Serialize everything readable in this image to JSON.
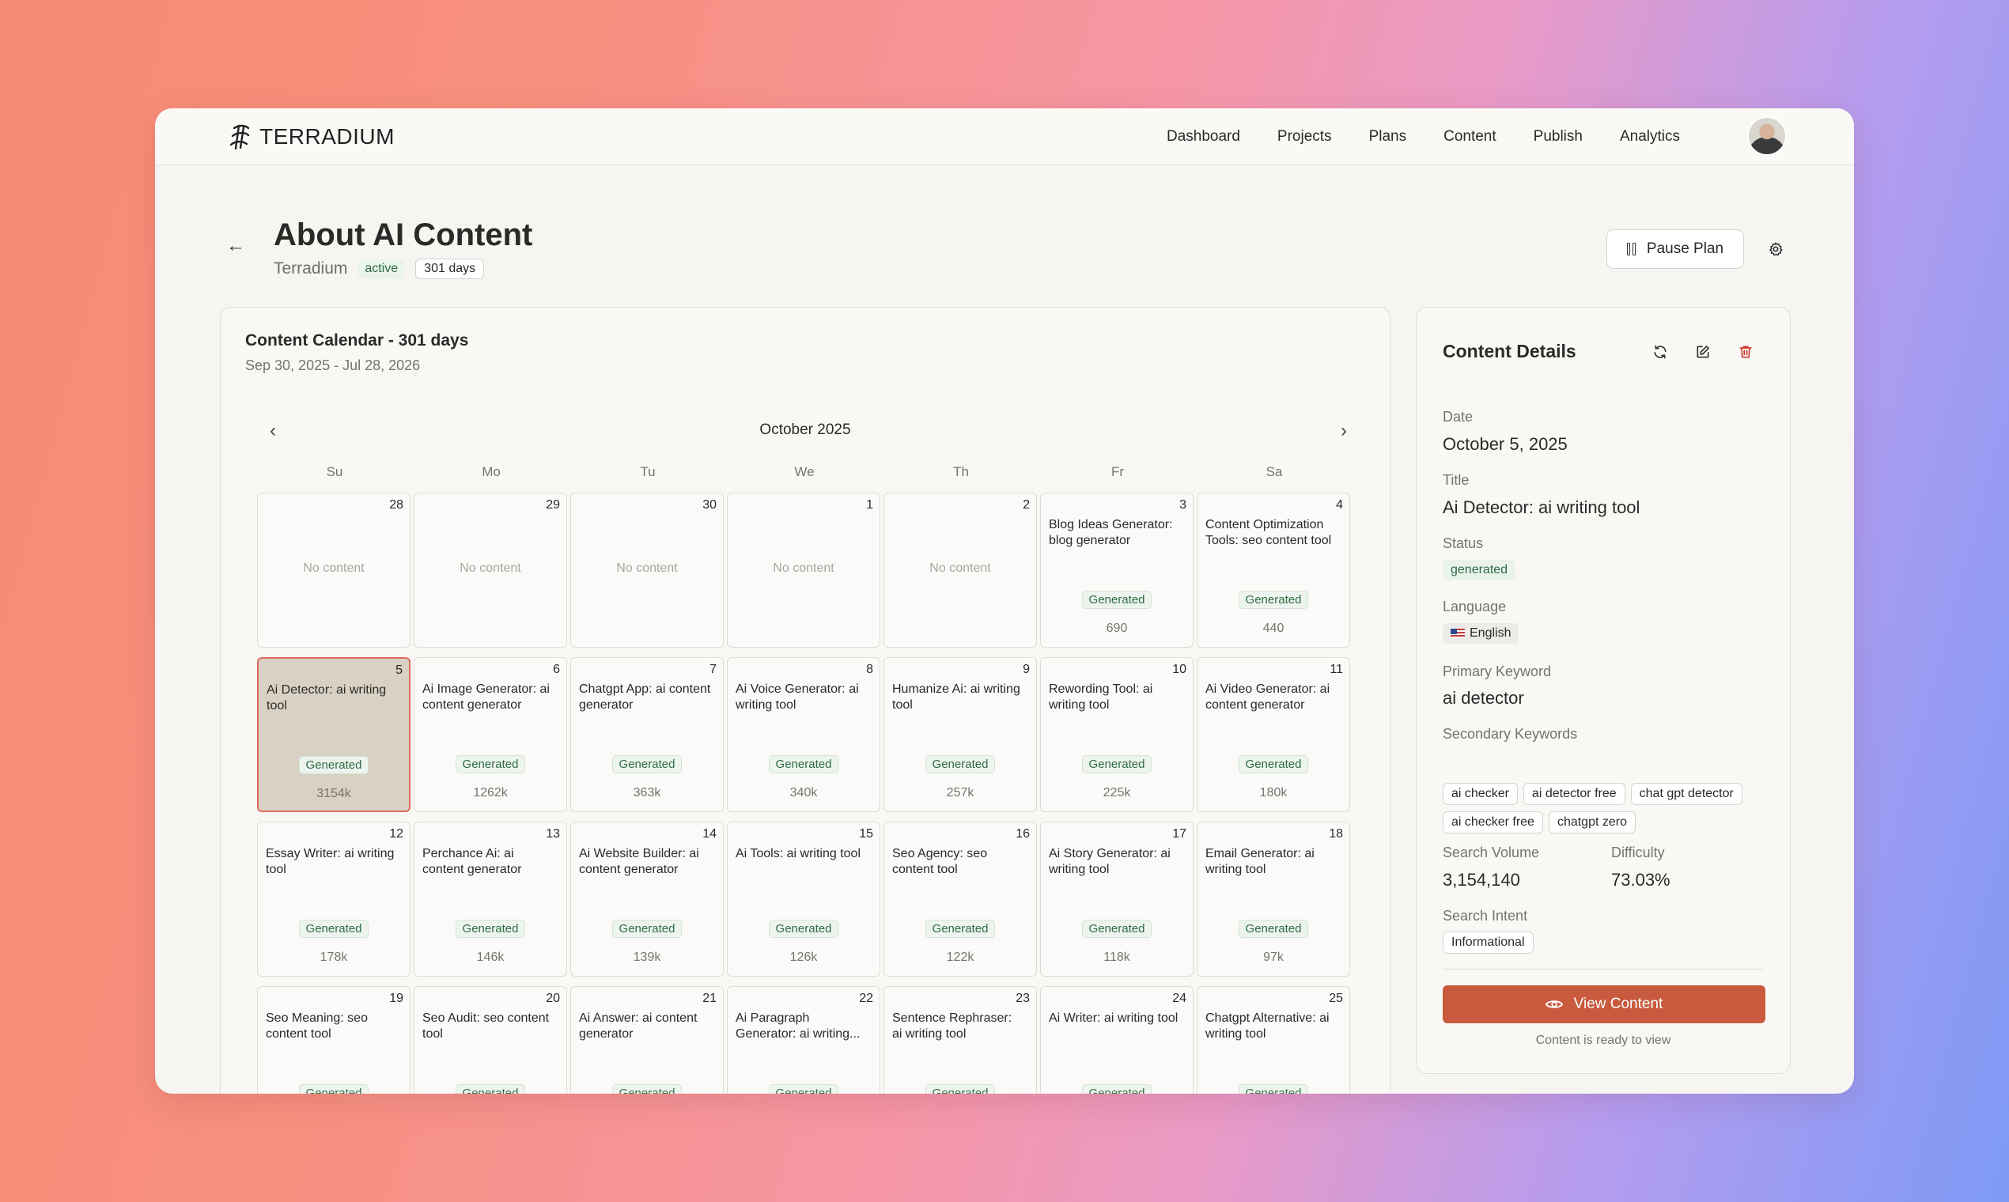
{
  "brand": {
    "name": "TERRADIUM"
  },
  "nav": {
    "items": [
      "Dashboard",
      "Projects",
      "Plans",
      "Content",
      "Publish",
      "Analytics"
    ]
  },
  "header": {
    "title": "About AI Content",
    "project": "Terradium",
    "status": "active",
    "duration": "301 days",
    "pause_label": "Pause Plan"
  },
  "calendar": {
    "title": "Content Calendar - 301 days",
    "range": "Sep 30, 2025 - Jul 28, 2026",
    "month": "October 2025",
    "weekdays": [
      "Su",
      "Mo",
      "Tu",
      "We",
      "Th",
      "Fr",
      "Sa"
    ],
    "empty_label": "No content",
    "selected_day": "5",
    "days": [
      {
        "day": "28",
        "title": "",
        "status": "",
        "volume": ""
      },
      {
        "day": "29",
        "title": "",
        "status": "",
        "volume": ""
      },
      {
        "day": "30",
        "title": "",
        "status": "",
        "volume": ""
      },
      {
        "day": "1",
        "title": "",
        "status": "",
        "volume": ""
      },
      {
        "day": "2",
        "title": "",
        "status": "",
        "volume": ""
      },
      {
        "day": "3",
        "title": "Blog Ideas Generator: blog generator",
        "status": "Generated",
        "volume": "690"
      },
      {
        "day": "4",
        "title": "Content Optimization Tools: seo content tool",
        "status": "Generated",
        "volume": "440"
      },
      {
        "day": "5",
        "title": "Ai Detector: ai writing tool",
        "status": "Generated",
        "volume": "3154k"
      },
      {
        "day": "6",
        "title": "Ai Image Generator: ai content generator",
        "status": "Generated",
        "volume": "1262k"
      },
      {
        "day": "7",
        "title": "Chatgpt App: ai content generator",
        "status": "Generated",
        "volume": "363k"
      },
      {
        "day": "8",
        "title": "Ai Voice Generator: ai writing tool",
        "status": "Generated",
        "volume": "340k"
      },
      {
        "day": "9",
        "title": "Humanize Ai: ai writing tool",
        "status": "Generated",
        "volume": "257k"
      },
      {
        "day": "10",
        "title": "Rewording Tool: ai writing tool",
        "status": "Generated",
        "volume": "225k"
      },
      {
        "day": "11",
        "title": "Ai Video Generator: ai content generator",
        "status": "Generated",
        "volume": "180k"
      },
      {
        "day": "12",
        "title": "Essay Writer: ai writing tool",
        "status": "Generated",
        "volume": "178k"
      },
      {
        "day": "13",
        "title": "Perchance Ai: ai content generator",
        "status": "Generated",
        "volume": "146k"
      },
      {
        "day": "14",
        "title": "Ai Website Builder: ai content generator",
        "status": "Generated",
        "volume": "139k"
      },
      {
        "day": "15",
        "title": "Ai Tools: ai writing tool",
        "status": "Generated",
        "volume": "126k"
      },
      {
        "day": "16",
        "title": "Seo Agency: seo content tool",
        "status": "Generated",
        "volume": "122k"
      },
      {
        "day": "17",
        "title": "Ai Story Generator: ai writing tool",
        "status": "Generated",
        "volume": "118k"
      },
      {
        "day": "18",
        "title": "Email Generator: ai writing tool",
        "status": "Generated",
        "volume": "97k"
      },
      {
        "day": "19",
        "title": "Seo Meaning: seo content tool",
        "status": "Generated",
        "volume": ""
      },
      {
        "day": "20",
        "title": "Seo Audit: seo content tool",
        "status": "Generated",
        "volume": ""
      },
      {
        "day": "21",
        "title": "Ai Answer: ai content generator",
        "status": "Generated",
        "volume": ""
      },
      {
        "day": "22",
        "title": "Ai Paragraph Generator: ai writing...",
        "status": "Generated",
        "volume": ""
      },
      {
        "day": "23",
        "title": "Sentence Rephraser: ai writing tool",
        "status": "Generated",
        "volume": ""
      },
      {
        "day": "24",
        "title": "Ai Writer: ai writing tool",
        "status": "Generated",
        "volume": ""
      },
      {
        "day": "25",
        "title": "Chatgpt Alternative: ai writing tool",
        "status": "Generated",
        "volume": ""
      }
    ]
  },
  "details": {
    "title": "Content Details",
    "date_label": "Date",
    "date": "October 5, 2025",
    "title_label": "Title",
    "content_title": "Ai Detector: ai writing tool",
    "status_label": "Status",
    "status": "generated",
    "language_label": "Language",
    "language": "English",
    "primary_label": "Primary Keyword",
    "primary_keyword": "ai detector",
    "secondary_label": "Secondary Keywords",
    "secondary_keywords": [
      "ai checker",
      "ai detector free",
      "chat gpt detector",
      "ai checker free",
      "chatgpt zero"
    ],
    "volume_label": "Search Volume",
    "volume": "3,154,140",
    "difficulty_label": "Difficulty",
    "difficulty": "73.03%",
    "intent_label": "Search Intent",
    "intent": "Informational",
    "view_label": "View Content",
    "view_note": "Content is ready to view"
  },
  "colors": {
    "accent": "#c85a3d",
    "selected_border": "#dc6c5e",
    "success": "#2f6b43"
  }
}
